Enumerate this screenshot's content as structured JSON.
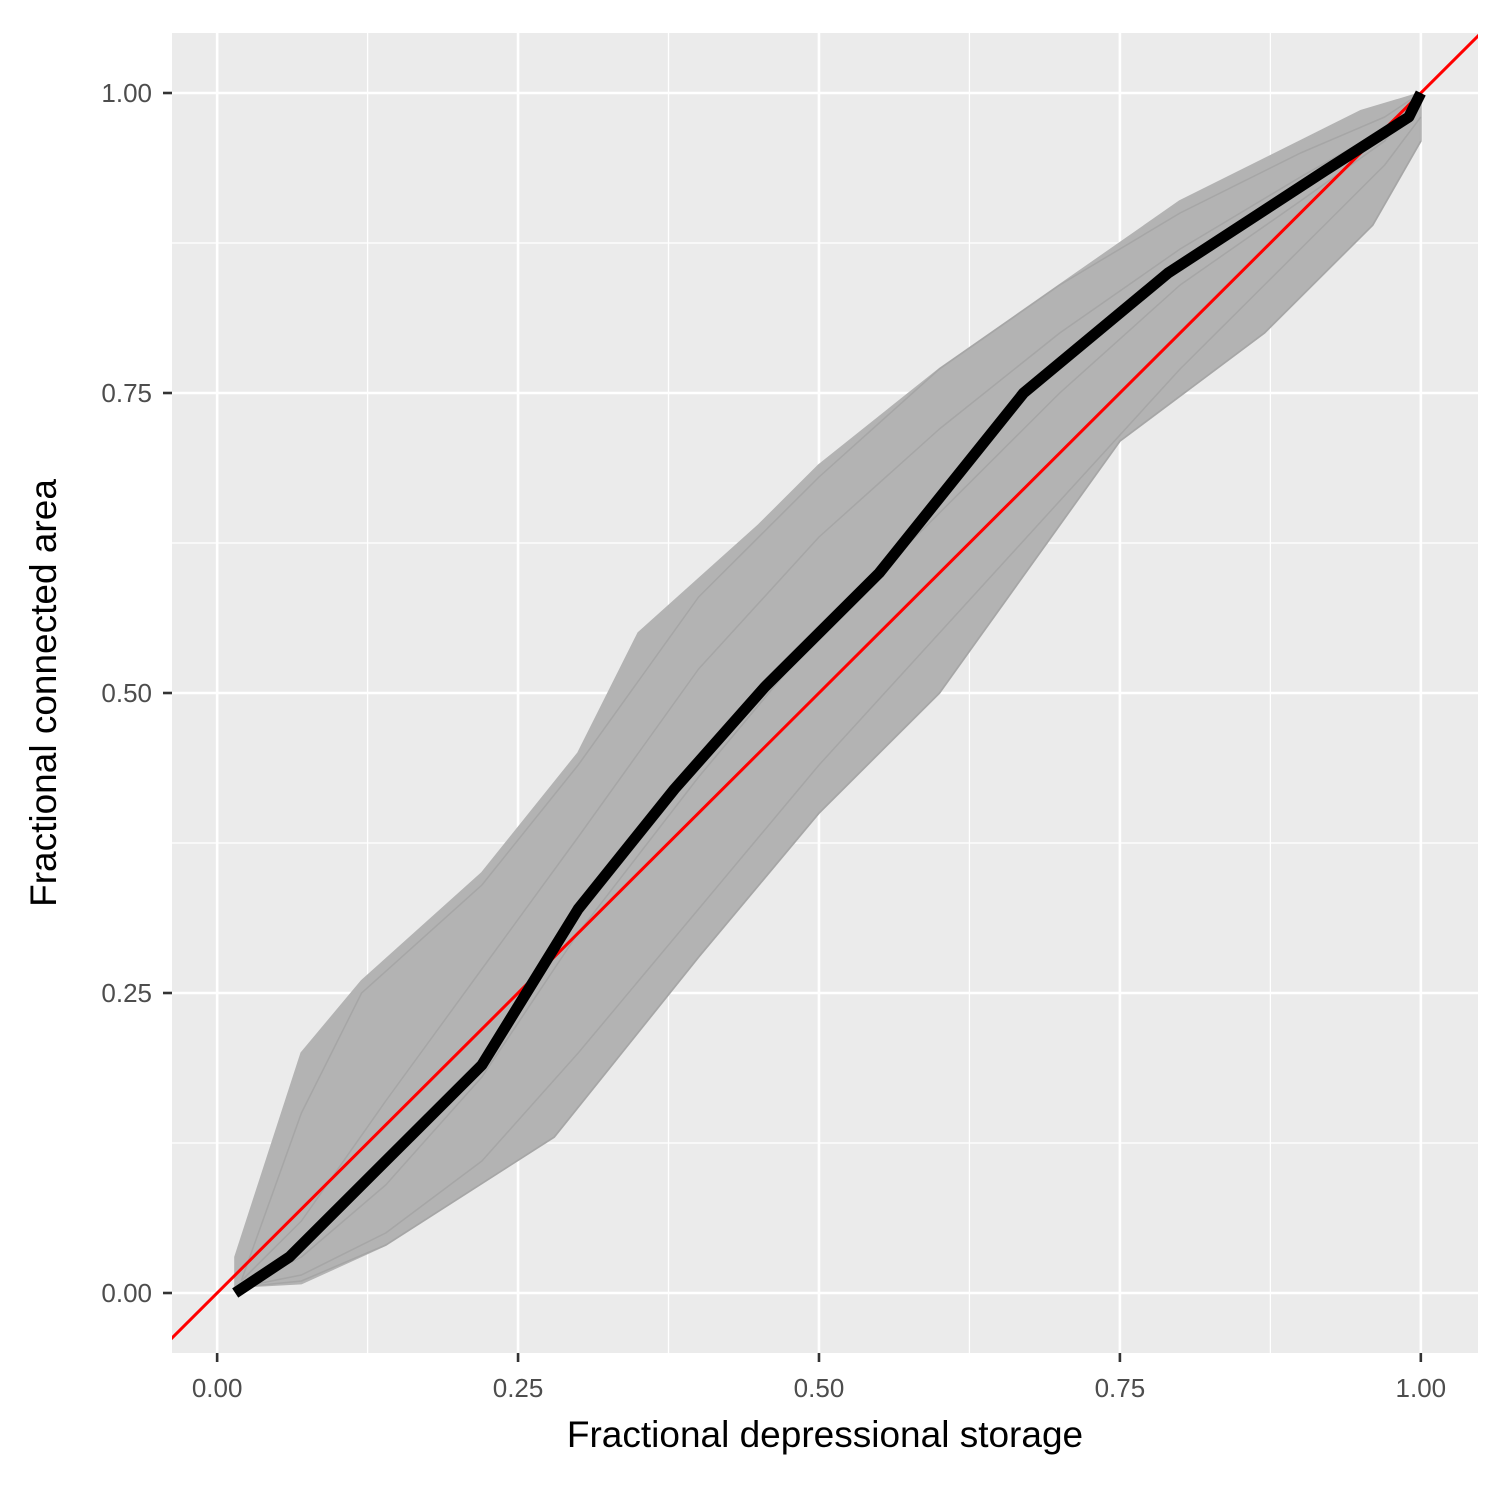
{
  "chart_data": {
    "type": "line",
    "xlabel": "Fractional depressional storage",
    "ylabel": "Fractional connected area",
    "xlim": [
      -0.0375,
      1.0475
    ],
    "ylim": [
      -0.05,
      1.05
    ],
    "x_ticks": [
      0.0,
      0.25,
      0.5,
      0.75,
      1.0
    ],
    "x_tick_labels": [
      "0.00",
      "0.25",
      "0.50",
      "0.75",
      "1.00"
    ],
    "y_ticks": [
      0.0,
      0.25,
      0.5,
      0.75,
      1.0
    ],
    "y_tick_labels": [
      "0.00",
      "0.25",
      "0.50",
      "0.75",
      "1.00"
    ],
    "grid": true,
    "legend": "none",
    "colors": {
      "panel_background": "#ebebeb",
      "grid": "#ffffff",
      "ensemble": "#b3b3b3",
      "mean": "#000000",
      "reference": "#ff0000"
    },
    "reference_line": {
      "slope": 1,
      "intercept": 0
    },
    "ensemble_envelope": {
      "upper": [
        {
          "x": 0.015,
          "y": 0.03
        },
        {
          "x": 0.07,
          "y": 0.2
        },
        {
          "x": 0.12,
          "y": 0.26
        },
        {
          "x": 0.22,
          "y": 0.35
        },
        {
          "x": 0.3,
          "y": 0.45
        },
        {
          "x": 0.35,
          "y": 0.55
        },
        {
          "x": 0.45,
          "y": 0.64
        },
        {
          "x": 0.5,
          "y": 0.69
        },
        {
          "x": 0.6,
          "y": 0.77
        },
        {
          "x": 0.7,
          "y": 0.84
        },
        {
          "x": 0.8,
          "y": 0.91
        },
        {
          "x": 0.9,
          "y": 0.96
        },
        {
          "x": 0.95,
          "y": 0.985
        },
        {
          "x": 1.0,
          "y": 1.0
        }
      ],
      "lower": [
        {
          "x": 1.0,
          "y": 0.96
        },
        {
          "x": 0.96,
          "y": 0.89
        },
        {
          "x": 0.87,
          "y": 0.8
        },
        {
          "x": 0.75,
          "y": 0.71
        },
        {
          "x": 0.6,
          "y": 0.5
        },
        {
          "x": 0.5,
          "y": 0.4
        },
        {
          "x": 0.4,
          "y": 0.28
        },
        {
          "x": 0.28,
          "y": 0.13
        },
        {
          "x": 0.14,
          "y": 0.04
        },
        {
          "x": 0.07,
          "y": 0.008
        },
        {
          "x": 0.015,
          "y": 0.005
        }
      ]
    },
    "series": [
      {
        "x": [
          0.015,
          0.06,
          0.115,
          0.22,
          0.3,
          0.38,
          0.455,
          0.55,
          0.67,
          0.79,
          0.92,
          0.99,
          1.0
        ],
        "y": [
          0.0,
          0.03,
          0.085,
          0.19,
          0.32,
          0.42,
          0.505,
          0.6,
          0.75,
          0.85,
          0.935,
          0.98,
          1.0
        ]
      }
    ],
    "sample_lines": [
      {
        "x": [
          0.02,
          0.07,
          0.12,
          0.22,
          0.3,
          0.4,
          0.5,
          0.6,
          0.7,
          0.8,
          0.9,
          0.97,
          1.0
        ],
        "y": [
          0.01,
          0.15,
          0.25,
          0.34,
          0.44,
          0.58,
          0.68,
          0.77,
          0.84,
          0.9,
          0.95,
          0.98,
          1.0
        ]
      },
      {
        "x": [
          0.02,
          0.07,
          0.14,
          0.22,
          0.3,
          0.4,
          0.5,
          0.6,
          0.7,
          0.8,
          0.9,
          0.97,
          1.0
        ],
        "y": [
          0.01,
          0.06,
          0.16,
          0.27,
          0.38,
          0.52,
          0.63,
          0.72,
          0.8,
          0.87,
          0.93,
          0.97,
          1.0
        ]
      },
      {
        "x": [
          0.02,
          0.07,
          0.14,
          0.22,
          0.3,
          0.4,
          0.5,
          0.6,
          0.7,
          0.8,
          0.9,
          0.97,
          1.0
        ],
        "y": [
          0.005,
          0.03,
          0.09,
          0.18,
          0.3,
          0.43,
          0.55,
          0.65,
          0.75,
          0.84,
          0.91,
          0.96,
          1.0
        ]
      },
      {
        "x": [
          0.02,
          0.07,
          0.14,
          0.22,
          0.3,
          0.4,
          0.5,
          0.6,
          0.7,
          0.8,
          0.9,
          0.97,
          1.0
        ],
        "y": [
          0.005,
          0.015,
          0.05,
          0.11,
          0.2,
          0.32,
          0.44,
          0.55,
          0.66,
          0.77,
          0.87,
          0.94,
          0.98
        ]
      },
      {
        "x": [
          0.02,
          0.07,
          0.14,
          0.28,
          0.4,
          0.5,
          0.6,
          0.75,
          0.87,
          0.96,
          1.0
        ],
        "y": [
          0.005,
          0.01,
          0.04,
          0.13,
          0.28,
          0.4,
          0.5,
          0.71,
          0.8,
          0.89,
          0.96
        ]
      }
    ]
  }
}
